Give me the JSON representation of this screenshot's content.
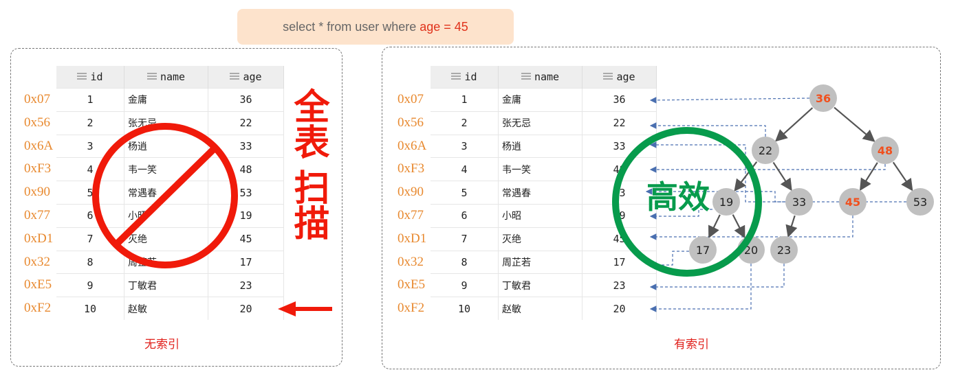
{
  "query": {
    "prefix": "select * from user where",
    "highlight": "age = 45"
  },
  "columns": [
    {
      "label": "id",
      "icon": "key-column-icon"
    },
    {
      "label": "name",
      "icon": "column-icon"
    },
    {
      "label": "age",
      "icon": "column-icon"
    }
  ],
  "rows": [
    {
      "addr": "0x07",
      "id": "1",
      "name": "金庸",
      "age": "36"
    },
    {
      "addr": "0x56",
      "id": "2",
      "name": "张无忌",
      "age": "22"
    },
    {
      "addr": "0x6A",
      "id": "3",
      "name": "杨逍",
      "age": "33"
    },
    {
      "addr": "0xF3",
      "id": "4",
      "name": "韦一笑",
      "age": "48"
    },
    {
      "addr": "0x90",
      "id": "5",
      "name": "常遇春",
      "age": "53"
    },
    {
      "addr": "0x77",
      "id": "6",
      "name": "小昭",
      "age": "19"
    },
    {
      "addr": "0xD1",
      "id": "7",
      "name": "灭绝",
      "age": "45"
    },
    {
      "addr": "0x32",
      "id": "8",
      "name": "周芷若",
      "age": "17"
    },
    {
      "addr": "0xE5",
      "id": "9",
      "name": "丁敏君",
      "age": "23"
    },
    {
      "addr": "0xF2",
      "id": "10",
      "name": "赵敏",
      "age": "20"
    }
  ],
  "left": {
    "caption": "无索引",
    "stamp_line1": "全表",
    "stamp_line2": "扫描"
  },
  "right": {
    "caption": "有索引",
    "stamp": "高效"
  },
  "tree": {
    "nodes": [
      {
        "v": "36",
        "hl": true
      },
      {
        "v": "22"
      },
      {
        "v": "48",
        "hl": true
      },
      {
        "v": "19"
      },
      {
        "v": "33"
      },
      {
        "v": "45",
        "hl": true
      },
      {
        "v": "53"
      },
      {
        "v": "17"
      },
      {
        "v": "20"
      },
      {
        "v": "23"
      }
    ]
  },
  "colors": {
    "red": "#f01a0a",
    "green": "#079b4c",
    "orange": "#e8892f",
    "highlight": "#f0501e",
    "node": "#c0c0c0",
    "link": "#4a6fb0"
  }
}
